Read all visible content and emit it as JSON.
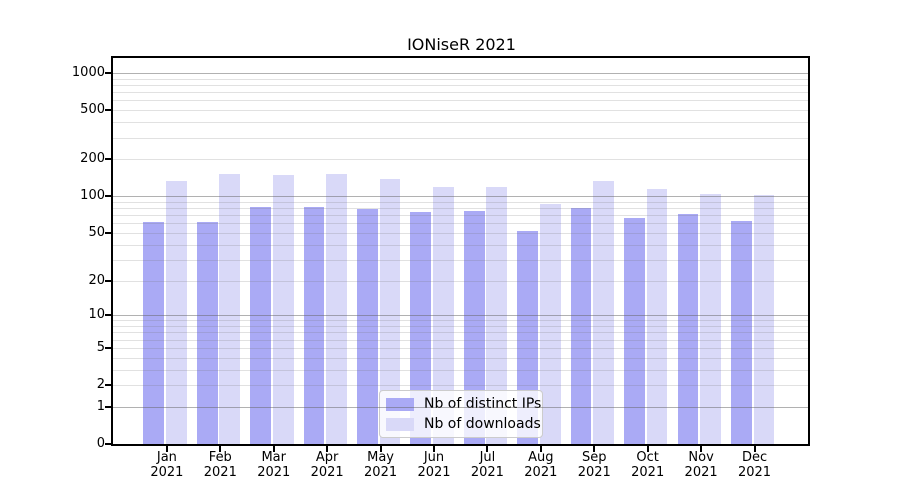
{
  "chart_data": {
    "type": "bar",
    "title": "IONiseR 2021",
    "year": "2021",
    "months": [
      "Jan",
      "Feb",
      "Mar",
      "Apr",
      "May",
      "Jun",
      "Jul",
      "Aug",
      "Sep",
      "Oct",
      "Nov",
      "Dec"
    ],
    "categories": [
      "Jan 2021",
      "Feb 2021",
      "Mar 2021",
      "Apr 2021",
      "May 2021",
      "Jun 2021",
      "Jul 2021",
      "Aug 2021",
      "Sep 2021",
      "Oct 2021",
      "Nov 2021",
      "Dec 2021"
    ],
    "series": [
      {
        "key": "distinct-ips",
        "name": "Nb of distinct IPs",
        "color": "#aaaaf5",
        "values": [
          61,
          61,
          81,
          81,
          78,
          74,
          76,
          52,
          80,
          66,
          72,
          63
        ]
      },
      {
        "key": "downloads",
        "name": "Nb of downloads",
        "color": "#d9d9f8",
        "values": [
          133,
          151,
          149,
          153,
          138,
          120,
          120,
          86,
          134,
          114,
          105,
          102
        ]
      }
    ],
    "yscale": "log1p",
    "ylim": [
      0,
      1324
    ],
    "y_ticks": [
      1000,
      500,
      200,
      100,
      50,
      20,
      10,
      5,
      2,
      1,
      0
    ],
    "grid": {
      "major_lines": [
        1,
        10,
        100,
        1000
      ],
      "minor_multiples": [
        2,
        3,
        4,
        5,
        6,
        7,
        8,
        9
      ],
      "minor_decades": [
        1,
        10,
        100
      ]
    },
    "legend_position": "lower center",
    "xlabel": "",
    "ylabel": ""
  }
}
